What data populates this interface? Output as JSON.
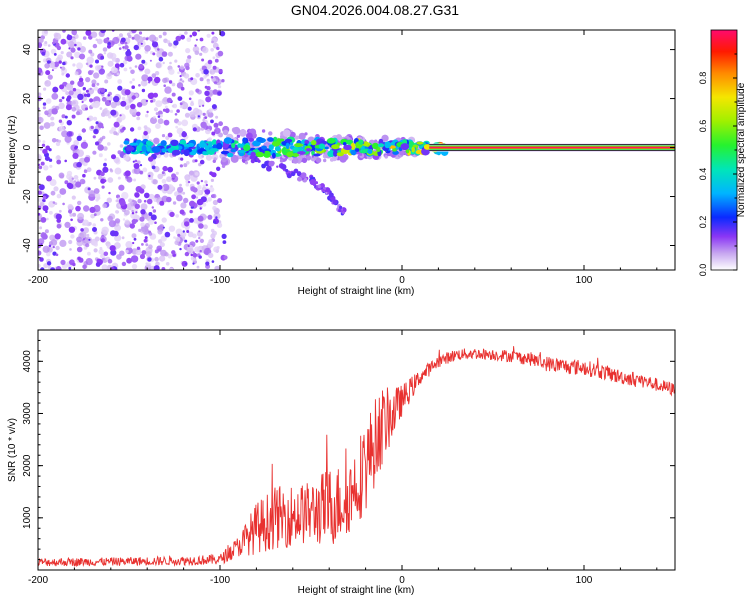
{
  "title": "GN04.2026.004.08.27.G31",
  "colors": {
    "snr_line": "#e8312f",
    "hull": "#d9c4f5",
    "axis": "#000000"
  },
  "chart_data": [
    {
      "type": "heatmap",
      "title": "GN04.2026.004.08.27.G31",
      "xlabel": "Height of straight line (km)",
      "ylabel": "Frequency (Hz)",
      "xlim": [
        -200,
        150
      ],
      "ylim": [
        -50,
        48
      ],
      "xticks": [
        -200,
        -100,
        0,
        100
      ],
      "xtick_labels": [
        "-200",
        "-100",
        "0",
        "100"
      ],
      "yticks": [
        -40,
        -20,
        0,
        20,
        40
      ],
      "ytick_labels": [
        "-40",
        "-20",
        "0",
        "20",
        "40"
      ],
      "colorbar": {
        "label": "Normalized spectral amplitude",
        "range": [
          0,
          1
        ],
        "ticks": [
          0.0,
          0.2,
          0.4,
          0.6,
          0.8
        ],
        "tick_labels": [
          "0.0",
          "0.2",
          "0.4",
          "0.6",
          "0.8"
        ]
      },
      "features": [
        {
          "name": "noise",
          "x_range": [
            -200,
            -100
          ],
          "y_range": [
            -50,
            48
          ],
          "amplitude": 0.15
        },
        {
          "name": "tone",
          "x_range": [
            -150,
            150
          ],
          "frequency": 0,
          "amplitude_start": 0.3,
          "amplitude_end": 1.0
        },
        {
          "name": "dispersion_branch",
          "x": [
            -90,
            -70,
            -50,
            -40,
            -32
          ],
          "y": [
            -3,
            -8,
            -13,
            -19,
            -27
          ],
          "amplitude": 0.2
        }
      ]
    },
    {
      "type": "line",
      "xlabel": "Height of straight line (km)",
      "ylabel": "SNR (10 * v/v)",
      "xlim": [
        -200,
        150
      ],
      "ylim": [
        0,
        4600
      ],
      "xticks": [
        -200,
        -100,
        0,
        100
      ],
      "xtick_labels": [
        "-200",
        "-100",
        "0",
        "100"
      ],
      "yticks": [
        1000,
        2000,
        3000,
        4000
      ],
      "ytick_labels": [
        "1000",
        "2000",
        "3000",
        "4000"
      ],
      "series": [
        {
          "name": "SNR",
          "x": [
            -200,
            -160,
            -120,
            -100,
            -90,
            -80,
            -70,
            -60,
            -50,
            -40,
            -30,
            -20,
            -12,
            -5,
            0,
            10,
            20,
            30,
            40,
            50,
            60,
            70,
            80,
            90,
            100,
            110,
            120,
            130,
            140,
            150
          ],
          "y": [
            150,
            160,
            180,
            200,
            450,
            800,
            1000,
            1050,
            1100,
            1200,
            1350,
            2000,
            2700,
            3000,
            3250,
            3700,
            4000,
            4130,
            4150,
            4130,
            4100,
            4050,
            3950,
            3900,
            3880,
            3800,
            3700,
            3650,
            3550,
            3450
          ],
          "noise_amplitude": [
            80,
            80,
            90,
            100,
            200,
            500,
            600,
            600,
            600,
            800,
            700,
            900,
            800,
            500,
            300,
            150,
            120,
            110,
            110,
            110,
            120,
            130,
            150,
            150,
            150,
            150,
            140,
            140,
            130,
            130
          ]
        }
      ]
    }
  ]
}
